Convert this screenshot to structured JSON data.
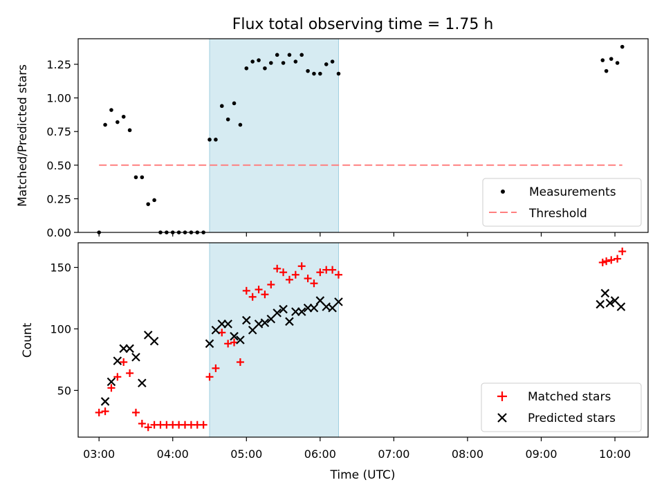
{
  "figure": {
    "title": "Flux total observing time = 1.75 h"
  },
  "chart_data": [
    {
      "type": "scatter",
      "ylabel": "Matched/Predicted stars",
      "xlim": [
        "02:43",
        "10:27"
      ],
      "ylim": [
        0,
        1.44
      ],
      "yticks": [
        0.0,
        0.25,
        0.5,
        0.75,
        1.0,
        1.25
      ],
      "ytick_labels": [
        "0.00",
        "0.25",
        "0.50",
        "0.75",
        "1.00",
        "1.25"
      ],
      "shaded_interval": [
        "04:30",
        "06:15"
      ],
      "legend_position": "lower-right",
      "series": [
        {
          "name": "Measurements",
          "marker": "dot",
          "color": "#000000",
          "x": [
            "03:00",
            "03:05",
            "03:10",
            "03:15",
            "03:20",
            "03:25",
            "03:30",
            "03:35",
            "03:40",
            "03:45",
            "03:50",
            "03:55",
            "04:00",
            "04:05",
            "04:10",
            "04:15",
            "04:20",
            "04:25",
            "04:30",
            "04:35",
            "04:40",
            "04:45",
            "04:50",
            "04:55",
            "05:00",
            "05:05",
            "05:10",
            "05:15",
            "05:20",
            "05:25",
            "05:30",
            "05:35",
            "05:40",
            "05:45",
            "05:50",
            "05:55",
            "06:00",
            "06:05",
            "06:10",
            "06:15",
            "09:50",
            "09:53",
            "09:57",
            "10:02",
            "10:06"
          ],
          "y": [
            0.0,
            0.8,
            0.91,
            0.82,
            0.86,
            0.76,
            0.41,
            0.41,
            0.21,
            0.24,
            0.0,
            0.0,
            0.0,
            0.0,
            0.0,
            0.0,
            0.0,
            0.0,
            0.69,
            0.69,
            0.94,
            0.84,
            0.96,
            0.8,
            1.22,
            1.27,
            1.28,
            1.22,
            1.26,
            1.32,
            1.26,
            1.32,
            1.27,
            1.32,
            1.2,
            1.18,
            1.18,
            1.25,
            1.27,
            1.18,
            1.28,
            1.2,
            1.29,
            1.26,
            1.38
          ]
        },
        {
          "name": "Threshold",
          "type": "line",
          "style": "dashed",
          "color": "#ff7f7f",
          "x": [
            "03:00",
            "10:06"
          ],
          "y": [
            0.5,
            0.5
          ]
        }
      ]
    },
    {
      "type": "scatter",
      "ylabel": "Count",
      "xlabel": "Time (UTC)",
      "xlim": [
        "02:43",
        "10:27"
      ],
      "xticks": [
        "03:00",
        "04:00",
        "05:00",
        "06:00",
        "07:00",
        "08:00",
        "09:00",
        "10:00"
      ],
      "ylim": [
        12,
        170
      ],
      "yticks": [
        50,
        100,
        150
      ],
      "ytick_labels": [
        "50",
        "100",
        "150"
      ],
      "shaded_interval": [
        "04:30",
        "06:15"
      ],
      "legend_position": "lower-right",
      "series": [
        {
          "name": "Matched stars",
          "marker": "plus",
          "color": "#ff0000",
          "x": [
            "03:00",
            "03:05",
            "03:10",
            "03:15",
            "03:20",
            "03:25",
            "03:30",
            "03:35",
            "03:40",
            "03:45",
            "03:50",
            "03:55",
            "04:00",
            "04:05",
            "04:10",
            "04:15",
            "04:20",
            "04:25",
            "04:30",
            "04:35",
            "04:40",
            "04:45",
            "04:50",
            "04:55",
            "05:00",
            "05:05",
            "05:10",
            "05:15",
            "05:20",
            "05:25",
            "05:30",
            "05:35",
            "05:40",
            "05:45",
            "05:50",
            "05:55",
            "06:00",
            "06:05",
            "06:10",
            "06:15",
            "09:50",
            "09:53",
            "09:57",
            "10:02",
            "10:06"
          ],
          "y": [
            32,
            33,
            52,
            61,
            73,
            64,
            32,
            23,
            20,
            22,
            22,
            22,
            22,
            22,
            22,
            22,
            22,
            22,
            61,
            68,
            97,
            88,
            89,
            73,
            131,
            126,
            132,
            128,
            136,
            149,
            146,
            140,
            144,
            151,
            141,
            137,
            146,
            148,
            148,
            144,
            154,
            155,
            156,
            157,
            163
          ]
        },
        {
          "name": "Predicted stars",
          "marker": "x",
          "color": "#000000",
          "x": [
            "03:05",
            "03:10",
            "03:15",
            "03:20",
            "03:25",
            "03:30",
            "03:35",
            "03:40",
            "03:45",
            "04:30",
            "04:35",
            "04:40",
            "04:45",
            "04:50",
            "04:55",
            "05:00",
            "05:05",
            "05:10",
            "05:15",
            "05:20",
            "05:25",
            "05:30",
            "05:35",
            "05:40",
            "05:45",
            "05:50",
            "05:55",
            "06:00",
            "06:05",
            "06:10",
            "06:15",
            "09:48",
            "09:52",
            "09:56",
            "10:00",
            "10:05"
          ],
          "y": [
            41,
            57,
            74,
            84,
            84,
            77,
            56,
            95,
            90,
            88,
            99,
            104,
            104,
            94,
            91,
            107,
            99,
            104,
            105,
            108,
            113,
            116,
            106,
            114,
            114,
            117,
            117,
            123,
            118,
            117,
            122,
            120,
            129,
            121,
            123,
            118
          ]
        }
      ]
    }
  ]
}
